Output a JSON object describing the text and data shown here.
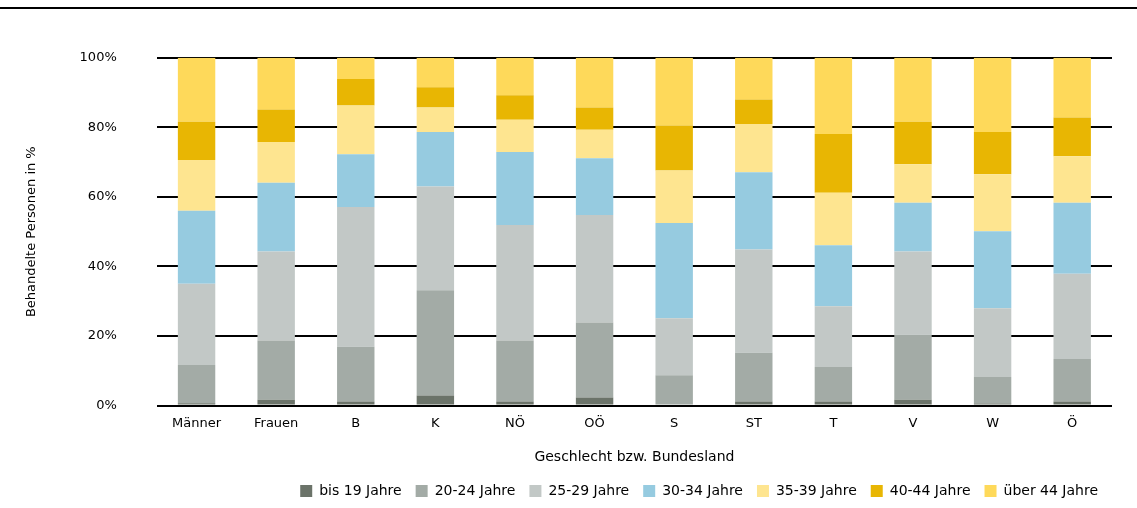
{
  "chart_data": {
    "type": "bar",
    "stacked": true,
    "xlabel": "Geschlecht bzw. Bundesland",
    "ylabel": "Behandelte Personen in %",
    "categories": [
      "Männer",
      "Frauen",
      "B",
      "K",
      "NÖ",
      "OÖ",
      "S",
      "ST",
      "T",
      "V",
      "W",
      "Ö"
    ],
    "ylim": [
      0,
      100
    ],
    "yticks": [
      {
        "value": 0,
        "label": "0%"
      },
      {
        "value": 20,
        "label": "20%"
      },
      {
        "value": 40,
        "label": "40%"
      },
      {
        "value": 60,
        "label": "60%"
      },
      {
        "value": 80,
        "label": "80%"
      },
      {
        "value": 100,
        "label": "100%"
      }
    ],
    "grid": "y",
    "legend": "bottom",
    "series": [
      {
        "name": "bis 19 Jahre",
        "color": "#6b7369",
        "values": [
          0.7,
          1.7,
          1.2,
          2.9,
          1.2,
          2.3,
          0,
          1.2,
          1.2,
          1.7,
          0.6,
          1.2
        ]
      },
      {
        "name": "20-24 Jahre",
        "color": "#a3aba6",
        "values": [
          11.0,
          17.0,
          15.7,
          30.3,
          17.5,
          21.6,
          8.7,
          14.0,
          9.9,
          18.7,
          7.6,
          12.2
        ]
      },
      {
        "name": "25-29 Jahre",
        "color": "#c2c8c6",
        "values": [
          23.3,
          25.6,
          40.2,
          29.8,
          33.2,
          30.9,
          16.4,
          29.7,
          17.5,
          23.9,
          19.8,
          24.5
        ]
      },
      {
        "name": "30-34 Jahre",
        "color": "#96cbe0",
        "values": [
          21.0,
          19.8,
          15.2,
          15.7,
          21.0,
          16.3,
          27.4,
          22.2,
          17.5,
          14.0,
          22.1,
          20.4
        ]
      },
      {
        "name": "35-39 Jahre",
        "color": "#fee590",
        "values": [
          14.6,
          11.7,
          14.0,
          7.0,
          9.3,
          8.2,
          15.1,
          13.9,
          15.1,
          11.1,
          16.4,
          13.4
        ]
      },
      {
        "name": "40-44 Jahre",
        "color": "#e8b603",
        "values": [
          11.0,
          9.3,
          7.6,
          5.8,
          7.0,
          6.4,
          12.9,
          7.0,
          16.9,
          12.2,
          12.2,
          11.1
        ]
      },
      {
        "name": "über 44 Jahre",
        "color": "#fed95a",
        "values": [
          18.4,
          14.9,
          6.1,
          8.5,
          10.8,
          14.3,
          19.5,
          12.0,
          21.9,
          18.4,
          21.3,
          17.2
        ]
      }
    ]
  }
}
